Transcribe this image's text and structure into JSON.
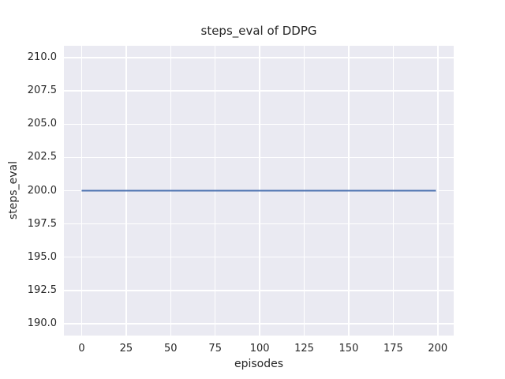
{
  "chart_data": {
    "type": "line",
    "title": "steps_eval of DDPG",
    "xlabel": "episodes",
    "ylabel": "steps_eval",
    "xlim": [
      -9.95,
      208.95
    ],
    "ylim": [
      189.1,
      210.9
    ],
    "xtick_values": [
      0,
      25,
      50,
      75,
      100,
      125,
      150,
      175,
      200
    ],
    "xtick_labels": [
      "0",
      "25",
      "50",
      "75",
      "100",
      "125",
      "150",
      "175",
      "200"
    ],
    "ytick_values": [
      190.0,
      192.5,
      195.0,
      197.5,
      200.0,
      202.5,
      205.0,
      207.5,
      210.0
    ],
    "ytick_labels": [
      "190.0",
      "192.5",
      "195.0",
      "197.5",
      "200.0",
      "202.5",
      "205.0",
      "207.5",
      "210.0"
    ],
    "grid": true,
    "legend": "none",
    "plot_bg_color": "#eaeaf2",
    "grid_color": "#ffffff",
    "text_color": "#262626",
    "series": [
      {
        "name": "DDPG steps_eval",
        "color": "#4c72b0",
        "x": [
          0,
          199
        ],
        "y": [
          200.0,
          200.0
        ]
      }
    ]
  }
}
